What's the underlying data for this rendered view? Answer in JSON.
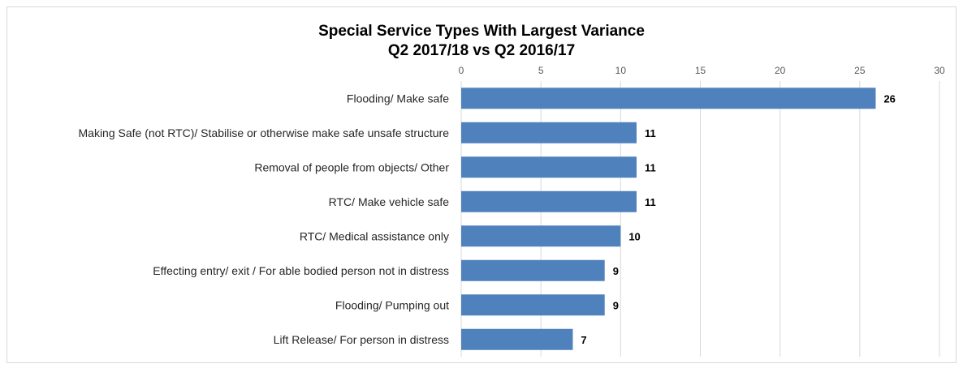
{
  "chart_data": {
    "type": "bar",
    "orientation": "horizontal",
    "title": "Special Service Types With Largest Variance",
    "subtitle": "Q2 2017/18 vs Q2 2016/17",
    "categories": [
      "Flooding/ Make safe",
      "Making Safe (not RTC)/ Stabilise or otherwise make safe unsafe structure",
      "Removal of people from objects/ Other",
      "RTC/ Make vehicle safe",
      "RTC/ Medical assistance only",
      "Effecting entry/ exit / For able bodied person not in distress",
      "Flooding/ Pumping out",
      "Lift Release/ For person in distress"
    ],
    "values": [
      26,
      11,
      11,
      11,
      10,
      9,
      9,
      7
    ],
    "xlim": [
      0,
      30
    ],
    "xticks": [
      0,
      5,
      10,
      15,
      20,
      25,
      30
    ],
    "axis_position": "top",
    "grid": true,
    "data_labels": true,
    "bar_color": "#4f81bd"
  }
}
